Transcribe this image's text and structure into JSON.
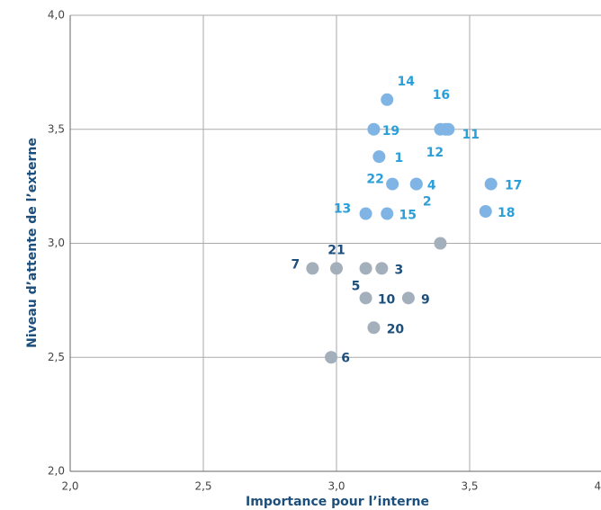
{
  "chart_data": {
    "type": "scatter",
    "xlabel": "Importance pour l’interne",
    "ylabel": "Niveau d’attente de l’externe",
    "xlim": [
      2,
      4
    ],
    "ylim": [
      2,
      4
    ],
    "xticks": [
      {
        "value": 2,
        "label": "2,0"
      },
      {
        "value": 2.5,
        "label": "2,5"
      },
      {
        "value": 3,
        "label": "3,0"
      },
      {
        "value": 3.5,
        "label": "3,5"
      },
      {
        "value": 4,
        "label": "4,0"
      }
    ],
    "yticks": [
      {
        "value": 2,
        "label": "2,0"
      },
      {
        "value": 2.5,
        "label": "2,5"
      },
      {
        "value": 3,
        "label": "3,0"
      },
      {
        "value": 3.5,
        "label": "3,5"
      },
      {
        "value": 4,
        "label": "4,0"
      }
    ],
    "grid": true,
    "series": [
      {
        "color": "#7fb4e4",
        "label_color": "#2b9fd8",
        "labels": [
          "14",
          "16",
          "11",
          "12",
          "19",
          "1",
          "22",
          "4",
          "2",
          "13",
          "15",
          "17",
          "18"
        ],
        "x": [
          3.19,
          3.39,
          3.42,
          3.41,
          3.14,
          3.16,
          3.21,
          3.3,
          3.3,
          3.11,
          3.19,
          3.58,
          3.56
        ],
        "values": [
          3.63,
          3.5,
          3.5,
          3.5,
          3.5,
          3.38,
          3.26,
          3.26,
          3.26,
          3.13,
          3.13,
          3.26,
          3.14
        ]
      },
      {
        "color": "#a3afbb",
        "label_color": "#1d4f7c",
        "labels": [
          null,
          "7",
          "21",
          "5",
          "3",
          "10",
          "9",
          "20",
          "6"
        ],
        "x": [
          3.39,
          2.91,
          3.0,
          3.11,
          3.17,
          3.11,
          3.27,
          3.14,
          2.98
        ],
        "values": [
          3.0,
          2.89,
          2.89,
          2.89,
          2.89,
          2.76,
          2.76,
          2.63,
          2.5
        ]
      }
    ]
  }
}
